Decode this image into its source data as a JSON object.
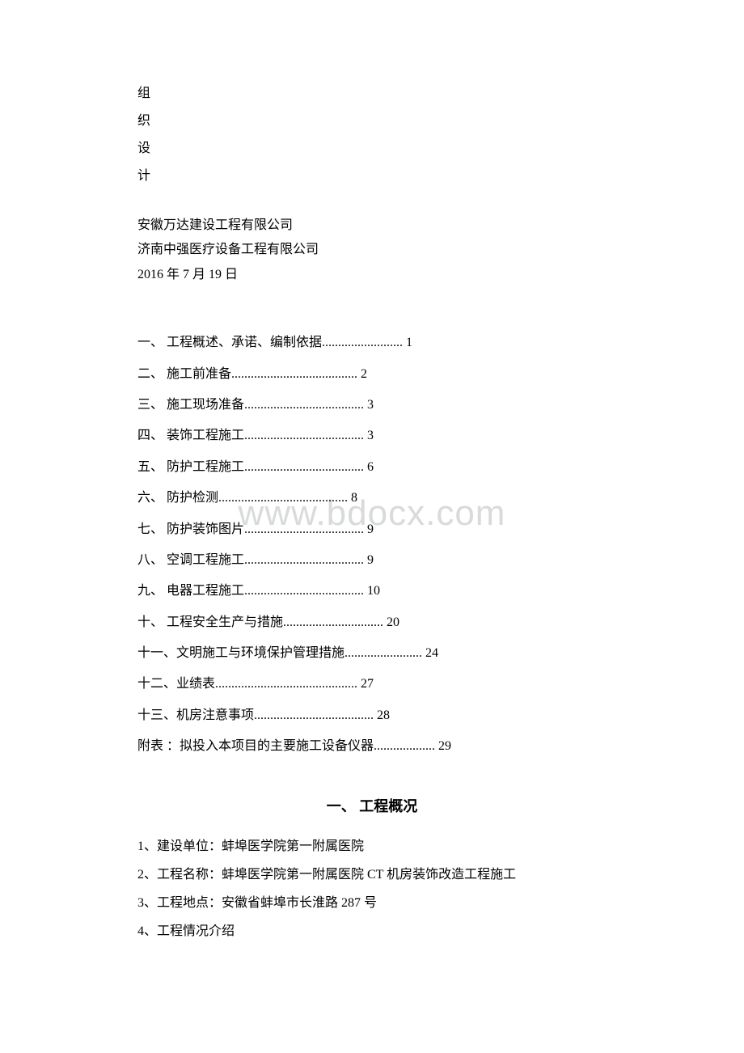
{
  "watermark": "www.bdocx.com",
  "vertical_title": {
    "c1": "组",
    "c2": "织",
    "c3": "设",
    "c4": "计"
  },
  "company_info": {
    "company1": "安徽万达建设工程有限公司",
    "company2": "济南中强医疗设备工程有限公司",
    "date": "2016 年 7 月 19 日"
  },
  "toc": {
    "item1": "一、 工程概述、承诺、编制依据......................... 1",
    "item2": "二、 施工前准备....................................... 2",
    "item3": "三、 施工现场准备..................................... 3",
    "item4": "四、 装饰工程施工..................................... 3",
    "item5": "五、 防护工程施工..................................... 6",
    "item6": "六、 防护检测........................................ 8",
    "item7": "七、 防护装饰图片..................................... 9",
    "item8": "八、 空调工程施工..................................... 9",
    "item9": "九、 电器工程施工..................................... 10",
    "item10": "十、 工程安全生产与措施............................... 20",
    "item11": "十一、文明施工与环境保护管理措施........................ 24",
    "item12": "十二、业绩表............................................ 27",
    "item13": "十三、机房注意事项..................................... 28",
    "item14": "附表 ：拟投入本项目的主要施工设备仪器................... 29"
  },
  "section_heading": "一、 工程概况",
  "content": {
    "line1": "1、建设单位：蚌埠医学院第一附属医院",
    "line2": "2、工程名称：蚌埠医学院第一附属医院 CT 机房装饰改造工程施工",
    "line3": "3、工程地点：安徽省蚌埠市长淮路 287 号",
    "line4": "4、工程情况介绍"
  }
}
